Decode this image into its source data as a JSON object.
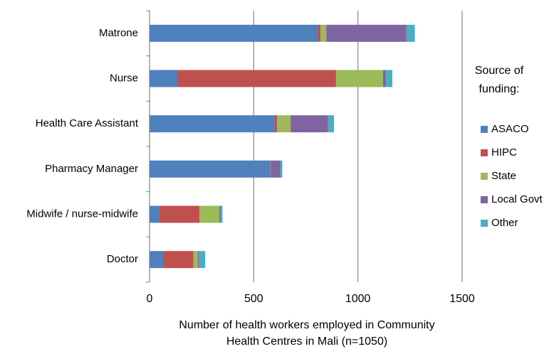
{
  "chart_data": {
    "type": "stacked_barh",
    "categories": [
      "Matrone",
      "Nurse",
      "Health Care Assistant",
      "Pharmacy Manager",
      "Midwife / nurse-midwife",
      "Doctor"
    ],
    "series": [
      {
        "name": "ASACO",
        "color": "#4f81bd",
        "values": [
          808,
          135,
          600,
          580,
          45,
          65
        ]
      },
      {
        "name": "HIPC",
        "color": "#c0504d",
        "values": [
          12,
          760,
          12,
          2,
          195,
          145
        ]
      },
      {
        "name": "State",
        "color": "#9bbb59",
        "values": [
          28,
          225,
          65,
          0,
          95,
          22
        ]
      },
      {
        "name": "Local Govt",
        "color": "#8064a2",
        "values": [
          385,
          15,
          180,
          45,
          5,
          5
        ]
      },
      {
        "name": "Other",
        "color": "#4bacc6",
        "values": [
          40,
          30,
          28,
          10,
          10,
          30
        ]
      }
    ],
    "xlim": [
      0,
      1500
    ],
    "xticks": [
      0,
      500,
      1000,
      1500
    ],
    "grid": true,
    "xlabel": [
      "Number of health workers employed in Community",
      "Health Centres in Mali (n=1050)"
    ],
    "legend_title": [
      "Source of",
      "funding:"
    ],
    "legend": "right"
  }
}
